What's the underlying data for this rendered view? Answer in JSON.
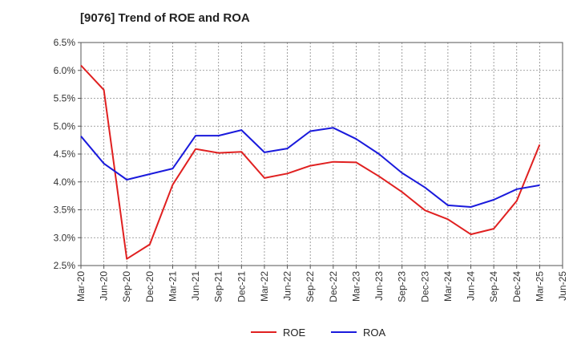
{
  "chart_data": {
    "type": "line",
    "title": "[9076]  Trend of ROE and ROA",
    "xlabel": "",
    "ylabel": "",
    "x": [
      "Mar-20",
      "Jun-20",
      "Sep-20",
      "Dec-20",
      "Mar-21",
      "Jun-21",
      "Sep-21",
      "Dec-21",
      "Mar-22",
      "Jun-22",
      "Sep-22",
      "Dec-22",
      "Mar-23",
      "Jun-23",
      "Sep-23",
      "Dec-23",
      "Mar-24",
      "Jun-24",
      "Sep-24",
      "Dec-24",
      "Mar-25",
      "Jun-25"
    ],
    "ylim": [
      2.5,
      6.5
    ],
    "yticks": [
      "2.5%",
      "3.0%",
      "3.5%",
      "4.0%",
      "4.5%",
      "5.0%",
      "5.5%",
      "6.0%",
      "6.5%"
    ],
    "grid": true,
    "legend_position": "bottom",
    "series": [
      {
        "name": "ROE",
        "color": "#e02020",
        "values": [
          6.09,
          5.65,
          2.62,
          2.88,
          3.95,
          4.59,
          4.52,
          4.54,
          4.07,
          4.15,
          4.29,
          4.36,
          4.35,
          4.1,
          3.82,
          3.49,
          3.33,
          3.06,
          3.16,
          3.66,
          4.67,
          null
        ]
      },
      {
        "name": "ROA",
        "color": "#1a1adc",
        "values": [
          4.82,
          4.33,
          4.04,
          4.14,
          4.24,
          4.83,
          4.83,
          4.93,
          4.53,
          4.6,
          4.91,
          4.97,
          4.77,
          4.5,
          4.16,
          3.9,
          3.58,
          3.55,
          3.68,
          3.87,
          3.94,
          null
        ]
      }
    ]
  }
}
